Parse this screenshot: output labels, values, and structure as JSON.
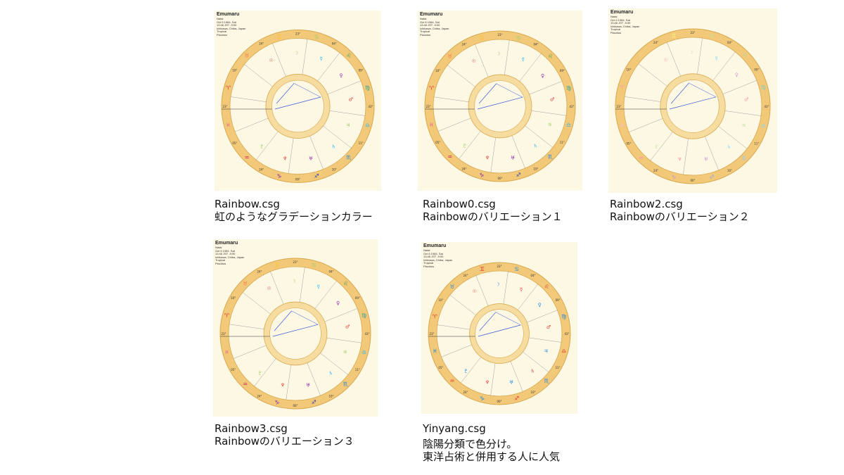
{
  "charts": [
    {
      "id": "rainbow",
      "header": {
        "name": "Emumaru",
        "lines": [
          "Natal",
          "Oct 6 1984, Sat",
          "13:46 JST -9:00",
          "Ichikawa, Chiba, Japan",
          "Tropical",
          "Placidus"
        ]
      },
      "caption": [
        "Rainbow.csg",
        "虹のようなグラデーションカラー"
      ],
      "colors": {
        "outer": "#f2c978",
        "inner": "#f7dca0",
        "sign_glyphs": "rainbow"
      }
    },
    {
      "id": "rainbow0",
      "header": {
        "name": "Emumaru",
        "lines": [
          "Natal",
          "Oct 6 1984, Sat",
          "13:46 JST -9:00",
          "Ichikawa, Chiba, Japan",
          "Tropical",
          "Placidus"
        ]
      },
      "caption": [
        "Rainbow0.csg",
        "Rainbowのバリエーション１"
      ],
      "colors": {
        "outer": "#f2c978",
        "inner": "#f7dca0",
        "sign_glyphs": "rainbow"
      }
    },
    {
      "id": "rainbow2",
      "header": {
        "name": "Emumaru",
        "lines": [
          "Natal",
          "Oct 6 1984, Sat",
          "13:46 JST -9:00",
          "Ichikawa, Chiba, Japan",
          "Tropical",
          "Placidus"
        ]
      },
      "caption": [
        "Rainbow2.csg",
        "Rainbowのバリエーション２"
      ],
      "colors": {
        "outer": "#f2c978",
        "inner": "#f7dca0",
        "sign_glyphs": "pastel"
      }
    },
    {
      "id": "rainbow3",
      "header": {
        "name": "Emumaru",
        "lines": [
          "Natal",
          "Oct 6 1984, Sat",
          "13:46 JST -9:00",
          "Ichikawa, Chiba, Japan",
          "Tropical",
          "Placidus"
        ]
      },
      "caption": [
        "Rainbow3.csg",
        "Rainbowのバリエーション３"
      ],
      "colors": {
        "outer": "#f2c978",
        "inner": "#f7dca0",
        "sign_glyphs": "rainbow"
      }
    },
    {
      "id": "yinyang",
      "header": {
        "name": "Emumaru",
        "lines": [
          "Natal",
          "Oct 6 1984, Sat",
          "13:46 JST -9:00",
          "Ichikawa, Chiba, Japan",
          "Tropical",
          "Placidus"
        ]
      },
      "caption": [
        "Yinyang.csg",
        "陰陽分類で色分け。",
        "東洋占術と併用する人に人気"
      ],
      "colors": {
        "outer": "#f2c978",
        "inner": "#f7dca0",
        "sign_glyphs": "yinyang"
      }
    }
  ],
  "sign_glyphs": [
    "♈",
    "♉",
    "♊",
    "♋",
    "♌",
    "♍",
    "♎",
    "♏",
    "♐",
    "♑",
    "♒",
    "♓"
  ],
  "planet_glyphs": [
    "☉",
    "☽",
    "☿",
    "♀",
    "♂",
    "♃",
    "♄",
    "♅",
    "♆",
    "♇"
  ],
  "degree_labels": [
    "10°",
    "24°",
    "23°",
    "04°",
    "09°",
    "43°",
    "11°",
    "10°",
    "00°",
    "24°",
    "05°",
    "23°"
  ]
}
